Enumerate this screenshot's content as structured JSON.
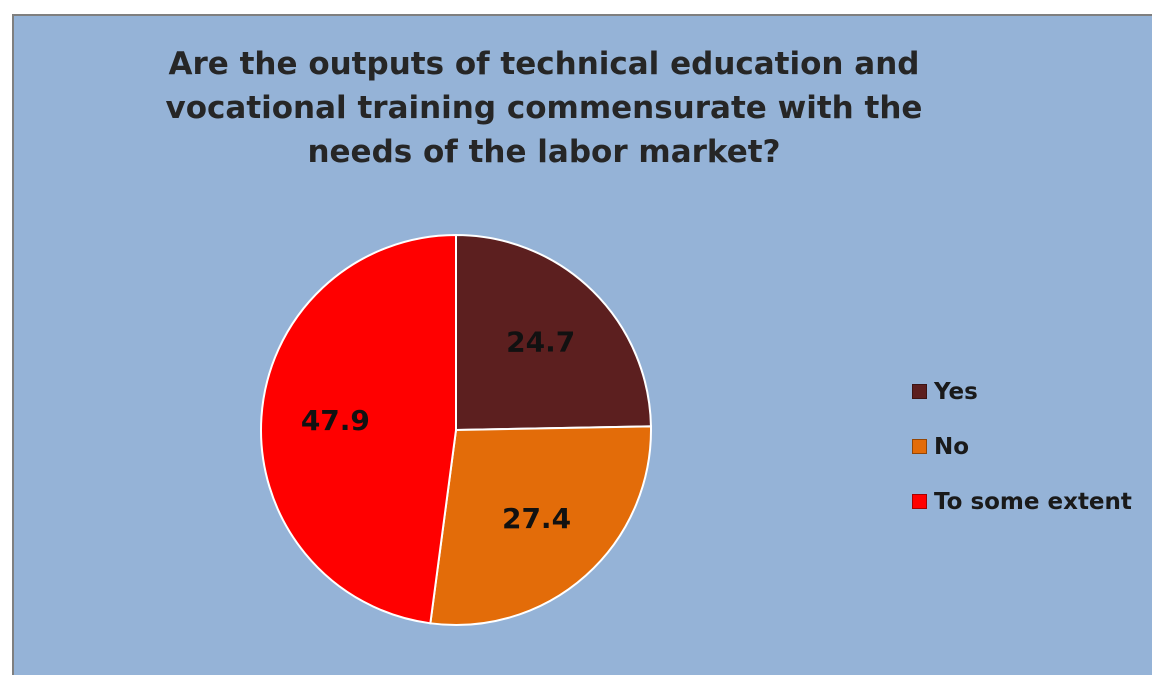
{
  "chart_data": {
    "type": "pie",
    "title": "Are the outputs of technical education and vocational training commensurate with the needs of the labor market?",
    "categories": [
      "Yes",
      "No",
      "To some extent"
    ],
    "values": [
      24.7,
      27.4,
      47.9
    ],
    "colors": [
      "#5c1f1f",
      "#e36c09",
      "#ff0000"
    ],
    "background_color": "#95b3d7",
    "legend_position": "right",
    "start_angle_deg": 0,
    "direction": "clockwise",
    "data_labels": [
      "24.7",
      "27.4",
      "47.9"
    ]
  }
}
